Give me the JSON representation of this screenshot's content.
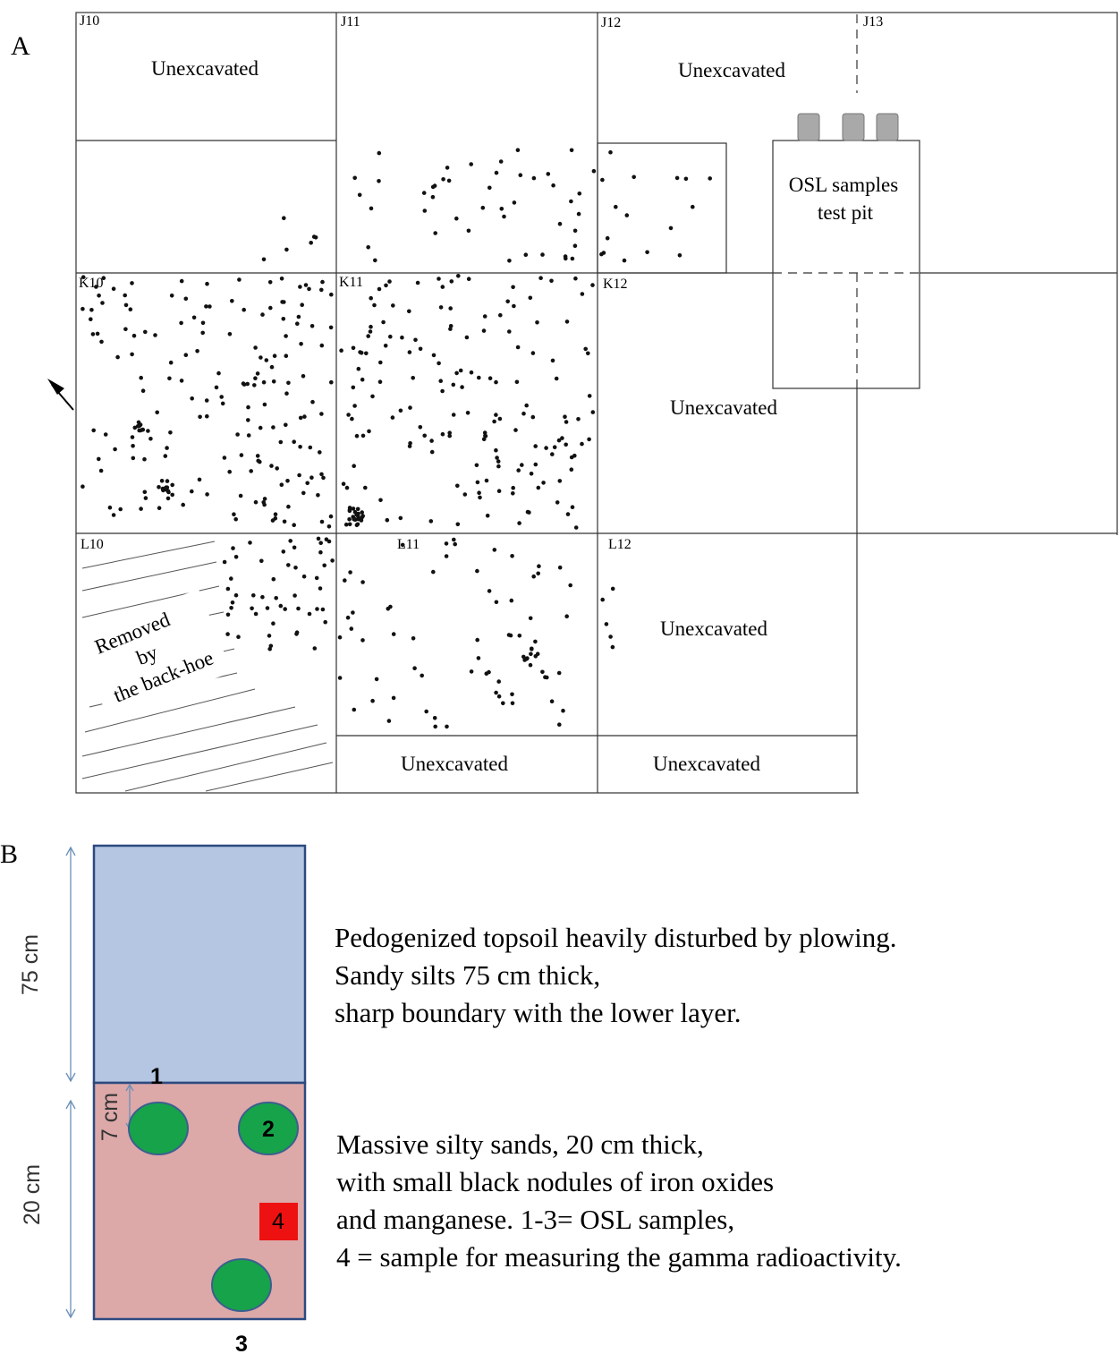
{
  "panel_a": {
    "letter": "A",
    "squares": {
      "J10": "J10",
      "J11": "J11",
      "J12": "J12",
      "J13": "J13",
      "K10": "K10",
      "K11": "K11",
      "K12": "K12",
      "L10": "L10",
      "L11": "L11",
      "L12": "L12"
    },
    "unexcavated": "Unexcavated",
    "backhoe": [
      "Removed",
      "by",
      "the back-hoe"
    ],
    "test_pit": [
      "OSL samples",
      "test pit"
    ]
  },
  "panel_b": {
    "letter": "B",
    "dim_top": "75 cm",
    "dim_bottom": "20 cm",
    "dim_small": "7 cm",
    "samples": {
      "s1": "1",
      "s2": "2",
      "s3": "3",
      "s4": "4"
    },
    "upper_description": [
      "Pedogenized topsoil heavily disturbed by plowing.",
      "Sandy silts 75 cm thick,",
      "sharp boundary with the lower layer."
    ],
    "lower_description": [
      "Massive silty sands, 20 cm thick,",
      "with small black  nodules of iron oxides",
      "and manganese. 1-3= OSL samples,",
      "4 = sample for measuring the gamma radioactivity."
    ],
    "colors": {
      "upper_layer": "#b4c6e2",
      "lower_layer": "#dca8a8",
      "osl_sample": "#17a34a",
      "gamma_sample": "#ee1111",
      "dimension_arrow": "#6a8fb7"
    }
  }
}
